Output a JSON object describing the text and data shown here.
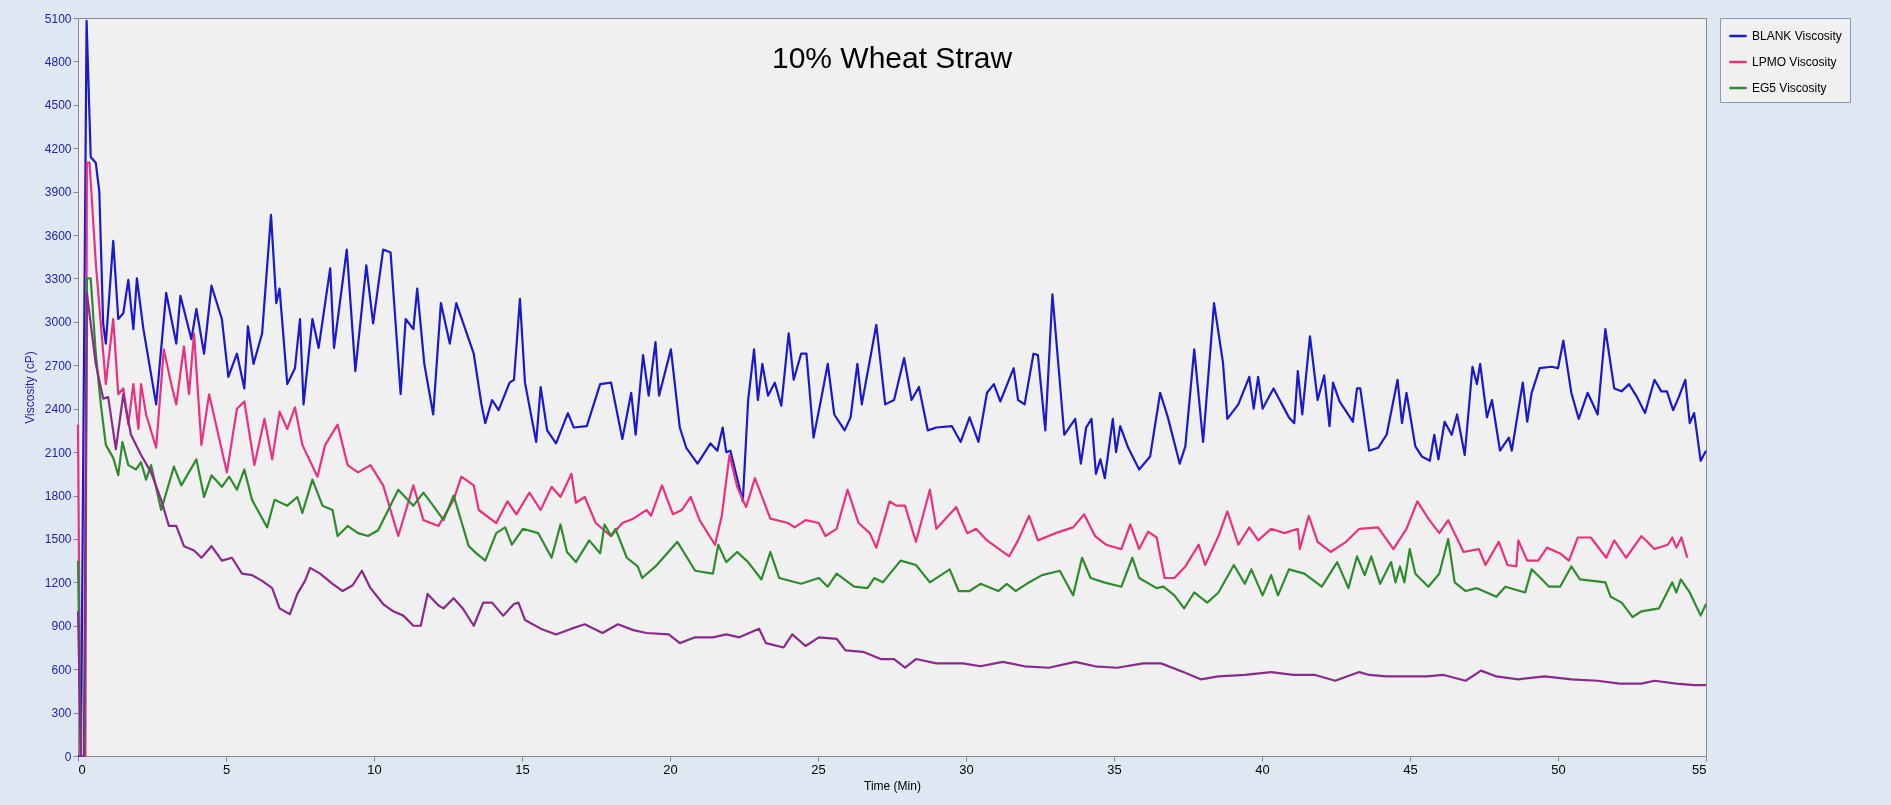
{
  "chart_data": {
    "type": "line",
    "title": "10% Wheat Straw",
    "xlabel": "Time  (Min)",
    "ylabel": "Viscosity (cP)",
    "xlim": [
      0,
      55
    ],
    "xticks": [
      0,
      5,
      10,
      15,
      20,
      25,
      30,
      35,
      40,
      45,
      50,
      55
    ],
    "ylim": [
      0,
      5100
    ],
    "yticks": [
      0,
      300,
      600,
      900,
      1200,
      1500,
      1800,
      2100,
      2400,
      2700,
      3000,
      3300,
      3600,
      3900,
      4200,
      4500,
      4800,
      5100
    ],
    "legend": "right",
    "series": [
      {
        "name": "BLANK Viscosity",
        "color": "#1a1acc",
        "x": [
          0,
          0.1,
          0.29,
          0.43,
          0.6,
          0.72,
          0.85,
          0.94,
          1.19,
          1.36,
          1.53,
          1.7,
          1.87,
          1.99,
          2.21,
          2.64,
          2.98,
          3.32,
          3.46,
          3.83,
          4,
          4.26,
          4.51,
          4.86,
          5.08,
          5.37,
          5.62,
          5.74,
          5.93,
          6.22,
          6.52,
          6.7,
          6.81,
          7.07,
          7.33,
          7.5,
          7.62,
          7.92,
          8.13,
          8.52,
          8.65,
          9.08,
          9.37,
          9.74,
          9.97,
          10.31,
          10.56,
          10.9,
          11.07,
          11.33,
          11.46,
          11.7,
          12,
          12.26,
          12.56,
          12.78,
          13.37,
          13.63,
          13.76,
          13.99,
          14.21,
          14.58,
          14.73,
          14.93,
          15.1,
          15.48,
          15.63,
          15.85,
          16.15,
          16.55,
          16.75,
          17.19,
          17.64,
          18.01,
          18.39,
          18.69,
          18.84,
          19.09,
          19.28,
          19.51,
          19.63,
          20.03,
          20.33,
          20.55,
          20.93,
          21.37,
          21.6,
          21.78,
          21.9,
          22.04,
          22.46,
          22.64,
          22.84,
          22.97,
          23.12,
          23.31,
          23.54,
          23.76,
          24.01,
          24.18,
          24.43,
          24.61,
          24.85,
          25.1,
          25.33,
          25.55,
          25.9,
          26.1,
          26.33,
          26.48,
          26.97,
          27.27,
          27.57,
          27.91,
          28.16,
          28.41,
          28.71,
          29,
          29.52,
          29.82,
          30.12,
          30.42,
          30.71,
          30.94,
          31.16,
          31.61,
          31.76,
          31.98,
          32.28,
          32.43,
          32.68,
          32.92,
          33.32,
          33.69,
          33.88,
          34.06,
          34.24,
          34.39,
          34.54,
          34.69,
          34.96,
          35.07,
          35.21,
          35.48,
          35.85,
          36.22,
          36.56,
          36.82,
          37.22,
          37.41,
          37.71,
          38.01,
          38.38,
          38.68,
          38.83,
          39.2,
          39.57,
          39.72,
          39.87,
          40.02,
          40.39,
          40.91,
          41.09,
          41.21,
          41.36,
          41.62,
          41.88,
          42.1,
          42.28,
          42.4,
          42.62,
          43.07,
          43.21,
          43.32,
          43.62,
          43.92,
          44.21,
          44.58,
          44.73,
          44.88,
          45.18,
          45.4,
          45.67,
          45.82,
          45.96,
          46.17,
          46.41,
          46.59,
          46.85,
          47.11,
          47.26,
          47.37,
          47.6,
          47.77,
          48.04,
          48.34,
          48.44,
          48.81,
          48.96,
          49.11,
          49.38,
          49.78,
          50,
          50.18,
          50.45,
          50.7,
          51,
          51.34,
          51.6,
          51.9,
          52.15,
          52.4,
          52.67,
          52.94,
          53.26,
          53.49,
          53.68,
          53.89,
          54.08,
          54.3,
          54.45,
          54.6,
          54.82,
          55
        ],
        "values": [
          0,
          0,
          5080,
          4140,
          4100,
          3900,
          2990,
          2850,
          3560,
          3020,
          3060,
          3290,
          2950,
          3300,
          2950,
          2430,
          3200,
          2850,
          3180,
          2880,
          3090,
          2780,
          3250,
          3020,
          2620,
          2780,
          2540,
          2970,
          2710,
          2920,
          3740,
          3130,
          3230,
          2570,
          2680,
          3020,
          2430,
          3020,
          2820,
          3370,
          2820,
          3500,
          2660,
          3390,
          2990,
          3500,
          3480,
          2500,
          3020,
          2950,
          3230,
          2710,
          2360,
          3130,
          2850,
          3130,
          2780,
          2430,
          2300,
          2460,
          2390,
          2580,
          2600,
          3160,
          2580,
          2170,
          2550,
          2250,
          2160,
          2370,
          2270,
          2280,
          2570,
          2580,
          2190,
          2510,
          2220,
          2770,
          2490,
          2860,
          2490,
          2810,
          2270,
          2130,
          2020,
          2160,
          2110,
          2270,
          2100,
          2110,
          1760,
          2460,
          2810,
          2460,
          2710,
          2490,
          2580,
          2420,
          2920,
          2600,
          2780,
          2780,
          2200,
          2460,
          2710,
          2360,
          2250,
          2340,
          2710,
          2430,
          2980,
          2430,
          2460,
          2750,
          2460,
          2550,
          2250,
          2270,
          2280,
          2170,
          2340,
          2170,
          2510,
          2570,
          2450,
          2680,
          2460,
          2430,
          2780,
          2770,
          2250,
          3190,
          2220,
          2330,
          2020,
          2270,
          2330,
          1950,
          2050,
          1920,
          2330,
          2100,
          2280,
          2130,
          1980,
          2070,
          2510,
          2340,
          2020,
          2140,
          2810,
          2170,
          3130,
          2720,
          2330,
          2430,
          2620,
          2400,
          2620,
          2400,
          2540,
          2340,
          2300,
          2660,
          2360,
          2900,
          2460,
          2630,
          2280,
          2580,
          2450,
          2310,
          2540,
          2540,
          2110,
          2130,
          2220,
          2600,
          2300,
          2510,
          2140,
          2070,
          2040,
          2220,
          2050,
          2310,
          2220,
          2360,
          2080,
          2690,
          2570,
          2710,
          2340,
          2460,
          2110,
          2200,
          2110,
          2580,
          2310,
          2510,
          2680,
          2690,
          2680,
          2870,
          2510,
          2330,
          2510,
          2360,
          2950,
          2540,
          2520,
          2570,
          2480,
          2370,
          2600,
          2520,
          2520,
          2390,
          2480,
          2600,
          2300,
          2370,
          2040,
          2110
        ]
      },
      {
        "name": "LPMO Viscosity",
        "color": "#e8327f",
        "x": [
          0,
          0.08,
          0.25,
          0.3,
          0.39,
          0.6,
          0.77,
          0.94,
          1.19,
          1.36,
          1.53,
          1.7,
          1.87,
          2.04,
          2.13,
          2.3,
          2.64,
          2.9,
          3.15,
          3.32,
          3.58,
          3.75,
          3.92,
          4.17,
          4.43,
          5.03,
          5.37,
          5.62,
          5.96,
          6.3,
          6.56,
          6.81,
          7.07,
          7.33,
          7.58,
          8.09,
          8.35,
          8.77,
          9.11,
          9.46,
          9.88,
          10.31,
          10.82,
          11.33,
          11.67,
          12.18,
          12.69,
          12.95,
          13.37,
          13.54,
          14.13,
          14.51,
          14.81,
          15.25,
          15.63,
          16,
          16.3,
          16.67,
          16.82,
          17.12,
          17.49,
          18.01,
          18.39,
          18.76,
          19.21,
          19.36,
          19.73,
          20.1,
          20.4,
          20.7,
          21,
          21.52,
          21.75,
          22.01,
          22.27,
          22.57,
          22.87,
          23.39,
          23.99,
          24.21,
          24.58,
          25.03,
          25.25,
          25.63,
          26,
          26.37,
          26.75,
          26.97,
          27.42,
          27.64,
          27.94,
          28.31,
          28.78,
          29,
          29.67,
          30.04,
          30.34,
          30.71,
          31.46,
          31.76,
          32.13,
          32.43,
          33.02,
          33.62,
          33.99,
          34.36,
          34.73,
          35.25,
          35.55,
          35.85,
          36.15,
          36.44,
          36.71,
          37.04,
          37.41,
          37.86,
          38.08,
          38.53,
          38.83,
          39.2,
          39.57,
          39.87,
          40.31,
          40.76,
          41.21,
          41.28,
          41.58,
          41.88,
          42.32,
          42.84,
          43.29,
          43.92,
          44.44,
          44.88,
          45.25,
          45.62,
          45.99,
          46.29,
          46.81,
          47.33,
          47.55,
          48,
          48.29,
          48.59,
          48.66,
          48.96,
          49.33,
          49.63,
          50.07,
          50.37,
          50.67,
          51.11,
          51.63,
          51.9,
          52.3,
          52.82,
          53.26,
          53.71,
          53.86,
          54,
          54.17,
          54.37
        ],
        "values": [
          2290,
          0,
          0,
          4100,
          4100,
          3410,
          2990,
          2570,
          3020,
          2500,
          2540,
          2290,
          2570,
          2260,
          2570,
          2360,
          2130,
          2810,
          2570,
          2430,
          2830,
          2500,
          2920,
          2150,
          2500,
          1960,
          2400,
          2450,
          2010,
          2330,
          2050,
          2380,
          2260,
          2410,
          2150,
          1930,
          2150,
          2290,
          2010,
          1960,
          2010,
          1870,
          1520,
          1870,
          1630,
          1590,
          1770,
          1930,
          1870,
          1700,
          1610,
          1760,
          1670,
          1820,
          1700,
          1860,
          1790,
          1950,
          1750,
          1790,
          1610,
          1520,
          1610,
          1640,
          1700,
          1660,
          1870,
          1670,
          1700,
          1790,
          1630,
          1460,
          1660,
          2080,
          1860,
          1720,
          1920,
          1640,
          1610,
          1580,
          1630,
          1610,
          1520,
          1570,
          1840,
          1610,
          1540,
          1440,
          1760,
          1730,
          1730,
          1480,
          1840,
          1570,
          1720,
          1540,
          1570,
          1490,
          1380,
          1490,
          1660,
          1490,
          1540,
          1580,
          1670,
          1520,
          1460,
          1430,
          1600,
          1430,
          1550,
          1510,
          1230,
          1230,
          1310,
          1460,
          1320,
          1520,
          1690,
          1460,
          1580,
          1490,
          1570,
          1540,
          1570,
          1430,
          1660,
          1480,
          1410,
          1480,
          1570,
          1580,
          1430,
          1570,
          1760,
          1640,
          1540,
          1630,
          1410,
          1430,
          1320,
          1480,
          1320,
          1310,
          1490,
          1350,
          1350,
          1440,
          1400,
          1350,
          1510,
          1510,
          1370,
          1490,
          1370,
          1520,
          1430,
          1460,
          1510,
          1440,
          1510,
          1370
        ]
      },
      {
        "name": "EG5 Viscosity",
        "color": "#2e8b2e",
        "x": [
          0,
          0.1,
          0.22,
          0.3,
          0.43,
          0.6,
          0.77,
          0.94,
          1.19,
          1.36,
          1.5,
          1.7,
          1.96,
          2.13,
          2.3,
          2.47,
          2.81,
          3.24,
          3.49,
          4,
          4.26,
          4.51,
          4.86,
          5.11,
          5.37,
          5.62,
          5.88,
          6.39,
          6.64,
          7.07,
          7.41,
          7.58,
          7.92,
          8.26,
          8.6,
          8.77,
          9.11,
          9.46,
          9.8,
          10.14,
          10.82,
          11.33,
          11.67,
          12,
          12.35,
          12.69,
          13.2,
          13.46,
          13.76,
          14.13,
          14.43,
          14.66,
          15.03,
          15.55,
          16,
          16.3,
          16.52,
          16.82,
          17.27,
          17.64,
          17.79,
          18.01,
          18.16,
          18.54,
          18.91,
          19.06,
          19.51,
          20.25,
          20.85,
          21.45,
          21.63,
          21.9,
          22.27,
          22.64,
          23.09,
          23.39,
          23.69,
          24.43,
          25.03,
          25.33,
          25.63,
          26.22,
          26.67,
          26.9,
          27.19,
          27.79,
          28.31,
          28.78,
          29.45,
          29.75,
          30.12,
          30.49,
          31.09,
          31.38,
          31.68,
          32.05,
          32.57,
          33.17,
          33.62,
          33.92,
          34.21,
          34.66,
          35.25,
          35.62,
          35.85,
          36.44,
          36.67,
          37.04,
          37.37,
          37.71,
          38.15,
          38.53,
          39.05,
          39.42,
          39.64,
          40.02,
          40.31,
          40.54,
          40.91,
          41.43,
          42.02,
          42.54,
          42.92,
          43.21,
          43.47,
          43.69,
          43.99,
          44.36,
          44.51,
          44.66,
          44.81,
          44.99,
          45.18,
          45.62,
          45.99,
          46.29,
          46.51,
          46.88,
          47.26,
          47.92,
          48.22,
          48.89,
          49.11,
          49.41,
          49.7,
          50.07,
          50.45,
          50.74,
          51.6,
          51.78,
          52.15,
          52.52,
          52.82,
          53.41,
          53.86,
          54,
          54.15,
          54.45,
          54.82,
          55
        ],
        "values": [
          1350,
          0,
          0,
          3300,
          3300,
          2780,
          2430,
          2150,
          2060,
          1940,
          2170,
          2010,
          1980,
          2030,
          1910,
          2010,
          1700,
          2000,
          1870,
          2050,
          1790,
          1940,
          1860,
          1930,
          1840,
          1980,
          1770,
          1580,
          1770,
          1730,
          1790,
          1680,
          1910,
          1730,
          1700,
          1520,
          1590,
          1540,
          1520,
          1560,
          1840,
          1730,
          1820,
          1730,
          1630,
          1800,
          1450,
          1400,
          1350,
          1540,
          1580,
          1460,
          1570,
          1540,
          1370,
          1600,
          1410,
          1340,
          1490,
          1400,
          1600,
          1520,
          1570,
          1370,
          1310,
          1230,
          1310,
          1480,
          1280,
          1260,
          1460,
          1340,
          1410,
          1340,
          1220,
          1410,
          1230,
          1190,
          1230,
          1170,
          1260,
          1170,
          1160,
          1230,
          1200,
          1350,
          1320,
          1200,
          1290,
          1140,
          1140,
          1190,
          1140,
          1190,
          1140,
          1190,
          1250,
          1280,
          1110,
          1370,
          1230,
          1200,
          1170,
          1370,
          1230,
          1160,
          1170,
          1110,
          1020,
          1130,
          1060,
          1130,
          1320,
          1190,
          1290,
          1110,
          1250,
          1110,
          1290,
          1260,
          1170,
          1340,
          1160,
          1380,
          1250,
          1380,
          1190,
          1340,
          1200,
          1310,
          1200,
          1430,
          1260,
          1170,
          1260,
          1500,
          1200,
          1140,
          1160,
          1100,
          1170,
          1130,
          1290,
          1230,
          1170,
          1170,
          1310,
          1220,
          1200,
          1100,
          1060,
          960,
          1000,
          1020,
          1200,
          1130,
          1220,
          1130,
          970,
          1050
        ]
      },
      {
        "name": null,
        "color": "#8a2a8a",
        "x": [
          0,
          0.1,
          0.2,
          0.3,
          0.6,
          0.85,
          1.02,
          1.28,
          1.53,
          1.79,
          2.13,
          2.47,
          2.81,
          3.07,
          3.32,
          3.58,
          3.92,
          4.17,
          4.51,
          4.86,
          5.2,
          5.54,
          5.88,
          6.22,
          6.56,
          6.81,
          7.16,
          7.41,
          7.67,
          7.84,
          8.18,
          8.6,
          8.94,
          9.28,
          9.59,
          9.88,
          10.31,
          10.65,
          10.99,
          11.33,
          11.58,
          11.81,
          12.18,
          12.35,
          12.69,
          13,
          13.37,
          13.69,
          13.99,
          14.36,
          14.73,
          14.88,
          15.1,
          15.63,
          16.15,
          16.67,
          17.12,
          17.72,
          18.24,
          18.76,
          19.21,
          19.96,
          20.33,
          20.85,
          21.45,
          21.9,
          22.34,
          23.01,
          23.24,
          23.84,
          24.13,
          24.58,
          25.03,
          25.63,
          25.93,
          26.52,
          27.12,
          27.57,
          27.94,
          28.31,
          29,
          29.9,
          30.49,
          31.24,
          31.98,
          32.8,
          33.69,
          34.36,
          35.1,
          35.99,
          36.59,
          37.34,
          37.93,
          38.53,
          39.42,
          40.31,
          41.06,
          41.8,
          42.47,
          43.29,
          43.62,
          44.21,
          44.96,
          45.55,
          46.14,
          46.88,
          47.4,
          47.92,
          48.66,
          49.55,
          50.45,
          51.34,
          52.08,
          52.82,
          53.26,
          54,
          54.6,
          55
        ],
        "values": [
          1000,
          0,
          0,
          3200,
          2710,
          2470,
          2480,
          2120,
          2500,
          2220,
          2080,
          1960,
          1770,
          1590,
          1590,
          1450,
          1420,
          1370,
          1450,
          1350,
          1370,
          1260,
          1250,
          1210,
          1160,
          1020,
          980,
          1120,
          1210,
          1300,
          1260,
          1190,
          1140,
          1180,
          1280,
          1160,
          1050,
          1000,
          970,
          900,
          900,
          1120,
          1040,
          1020,
          1090,
          1020,
          900,
          1060,
          1060,
          970,
          1050,
          1060,
          940,
          880,
          840,
          880,
          910,
          850,
          910,
          870,
          850,
          840,
          780,
          820,
          820,
          840,
          820,
          880,
          780,
          750,
          840,
          760,
          820,
          810,
          730,
          720,
          670,
          670,
          610,
          670,
          640,
          640,
          620,
          650,
          620,
          610,
          650,
          620,
          610,
          640,
          640,
          580,
          530,
          550,
          560,
          580,
          560,
          560,
          520,
          580,
          560,
          550,
          550,
          550,
          560,
          520,
          590,
          550,
          530,
          550,
          530,
          520,
          500,
          500,
          520,
          500,
          490,
          490
        ]
      }
    ]
  }
}
